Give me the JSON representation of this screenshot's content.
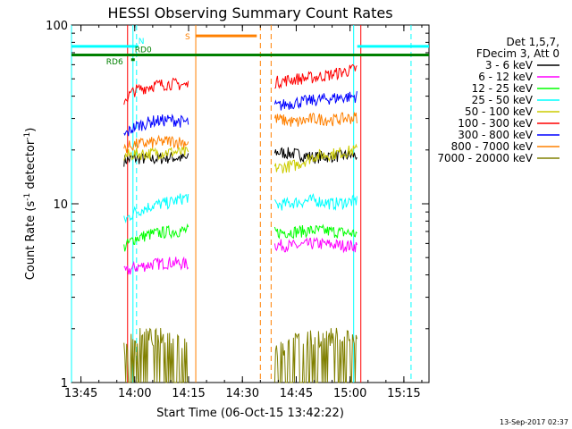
{
  "chart_data": {
    "type": "line",
    "title": "HESSI Observing Summary Count Rates",
    "xlabel": "Start Time (06-Oct-15 13:42:22)",
    "ylabel": "Count Rate (s⁻¹ detector⁻¹)",
    "ylabel_main": "Count Rate (s",
    "ylabel_sup1": "-1",
    "ylabel_mid": " detector",
    "ylabel_sup2": "-1",
    "ylabel_end": ")",
    "yscale": "log",
    "xlim": [
      "13:42:22",
      "15:22:00"
    ],
    "ylim": [
      1,
      100
    ],
    "x_ticks": [
      "13:45",
      "14:00",
      "14:15",
      "14:30",
      "14:45",
      "15:00",
      "15:15"
    ],
    "y_ticks": [
      "1",
      "10",
      "100"
    ],
    "footer_timestamp": "13-Sep-2017 02:37",
    "legend_header": [
      "Det 1,5,7,",
      "FDecim 3, Att 0"
    ],
    "series": [
      {
        "name": "3 - 6 keV",
        "color": "#000000",
        "segments": [
          {
            "x": [
              "13:57",
              "14:00",
              "14:05",
              "14:10",
              "14:15"
            ],
            "y": [
              17.5,
              18,
              17.8,
              18.2,
              17.9
            ]
          },
          {
            "x": [
              "14:39",
              "14:45",
              "14:50",
              "14:55",
              "15:02"
            ],
            "y": [
              19.5,
              19,
              18.2,
              18.5,
              18.7
            ]
          }
        ]
      },
      {
        "name": "6 - 12 keV",
        "color": "#ff00ff",
        "segments": [
          {
            "x": [
              "13:57",
              "14:00",
              "14:05",
              "14:10",
              "14:15"
            ],
            "y": [
              4.1,
              4.4,
              4.6,
              4.7,
              4.6
            ]
          },
          {
            "x": [
              "14:39",
              "14:45",
              "14:50",
              "14:55",
              "15:02"
            ],
            "y": [
              5.9,
              5.8,
              6.0,
              5.9,
              5.8
            ]
          }
        ]
      },
      {
        "name": "12 - 25 keV",
        "color": "#00ff00",
        "segments": [
          {
            "x": [
              "13:57",
              "14:00",
              "14:05",
              "14:10",
              "14:15"
            ],
            "y": [
              5.7,
              6.4,
              6.8,
              7.0,
              7.1
            ]
          },
          {
            "x": [
              "14:39",
              "14:45",
              "14:50",
              "14:55",
              "15:02"
            ],
            "y": [
              6.9,
              7.0,
              7.1,
              7.0,
              6.8
            ]
          }
        ]
      },
      {
        "name": "25 - 50 keV",
        "color": "#00ffff",
        "segments": [
          {
            "x": [
              "13:57",
              "14:00",
              "14:05",
              "14:10",
              "14:15"
            ],
            "y": [
              8.0,
              9.0,
              9.8,
              10.2,
              11.0
            ]
          },
          {
            "x": [
              "14:39",
              "14:45",
              "14:50",
              "14:55",
              "15:02"
            ],
            "y": [
              9.8,
              10.2,
              10.5,
              10.0,
              10.4
            ]
          }
        ]
      },
      {
        "name": "50 - 100 keV",
        "color": "#cccc00",
        "segments": [
          {
            "x": [
              "13:57",
              "14:00",
              "14:05",
              "14:10",
              "14:15"
            ],
            "y": [
              18.5,
              19,
              19.2,
              19.5,
              19.3
            ]
          },
          {
            "x": [
              "14:39",
              "14:45",
              "14:50",
              "14:55",
              "15:02"
            ],
            "y": [
              15.8,
              16.5,
              18.5,
              19.0,
              20.0
            ]
          }
        ]
      },
      {
        "name": "100 - 300 keV",
        "color": "#ff0000",
        "segments": [
          {
            "x": [
              "13:57",
              "14:00",
              "14:05",
              "14:10",
              "14:15"
            ],
            "y": [
              38,
              43,
              46,
              47,
              46
            ]
          },
          {
            "x": [
              "14:39",
              "14:45",
              "14:50",
              "14:55",
              "15:02"
            ],
            "y": [
              48,
              50,
              51,
              53,
              57
            ]
          }
        ]
      },
      {
        "name": "300 - 800 keV",
        "color": "#0000ff",
        "segments": [
          {
            "x": [
              "13:57",
              "14:00",
              "14:05",
              "14:10",
              "14:15"
            ],
            "y": [
              24,
              27,
              29,
              29.5,
              28.5
            ]
          },
          {
            "x": [
              "14:39",
              "14:45",
              "14:50",
              "14:55",
              "15:02"
            ],
            "y": [
              35,
              37,
              38,
              39,
              40
            ]
          }
        ]
      },
      {
        "name": "800 - 7000 keV",
        "color": "#ff8000",
        "segments": [
          {
            "x": [
              "13:57",
              "14:00",
              "14:05",
              "14:10",
              "14:15"
            ],
            "y": [
              20.5,
              21.5,
              22,
              22.5,
              22
            ]
          },
          {
            "x": [
              "14:39",
              "14:45",
              "14:50",
              "14:55",
              "15:02"
            ],
            "y": [
              30,
              28.5,
              30,
              29.5,
              30.5
            ]
          }
        ]
      },
      {
        "name": "7000 - 20000 keV",
        "color": "#808000",
        "segments": [
          {
            "x": [
              "13:57",
              "14:00",
              "14:05",
              "14:10",
              "14:15"
            ],
            "y": [
              1.6,
              1.8,
              1.8,
              1.8,
              1.7
            ]
          },
          {
            "x": [
              "14:39",
              "14:45",
              "14:50",
              "14:55",
              "15:02"
            ],
            "y": [
              1.5,
              1.7,
              1.8,
              1.8,
              1.8
            ]
          }
        ]
      }
    ],
    "state_bars": [
      {
        "label": "",
        "color": "#00ffff",
        "x": [
          "13:42:22",
          "14:00"
        ],
        "y": 76
      },
      {
        "label": "N",
        "color": "#00ffff",
        "x": [
          "14:00",
          "14:01"
        ],
        "y": 76
      },
      {
        "label": "",
        "color": "#00ffff",
        "x": [
          "15:02",
          "15:22:00"
        ],
        "y": 76
      },
      {
        "label": "S",
        "color": "#ff8000",
        "x": [
          "14:17",
          "14:34"
        ],
        "y": 87
      },
      {
        "label": "RD6",
        "color": "#008000",
        "x": [
          "13:42:22",
          "15:22:00"
        ],
        "y": 68
      },
      {
        "label": "RD0",
        "color": "#008000",
        "x": [
          "13:59",
          "14:00"
        ],
        "y": 68
      },
      {
        "label": "RD6",
        "color": "#008000",
        "x": [
          "13:59",
          "14:00"
        ],
        "y": 64
      }
    ],
    "vertical_lines": [
      {
        "x": "13:42:22",
        "color": "#00ffff",
        "style": "solid"
      },
      {
        "x": "13:58",
        "color": "#ff0000",
        "style": "solid"
      },
      {
        "x": "13:59:30",
        "color": "#00ffff",
        "style": "solid"
      },
      {
        "x": "14:00:30",
        "color": "#00ffff",
        "style": "dashed"
      },
      {
        "x": "14:17",
        "color": "#ff8000",
        "style": "solid"
      },
      {
        "x": "14:35",
        "color": "#ff8000",
        "style": "dashed"
      },
      {
        "x": "14:38",
        "color": "#ff8000",
        "style": "dashed"
      },
      {
        "x": "15:01",
        "color": "#00ffff",
        "style": "solid"
      },
      {
        "x": "15:03",
        "color": "#ff0000",
        "style": "solid"
      },
      {
        "x": "15:17",
        "color": "#00ffff",
        "style": "dashed"
      }
    ]
  }
}
